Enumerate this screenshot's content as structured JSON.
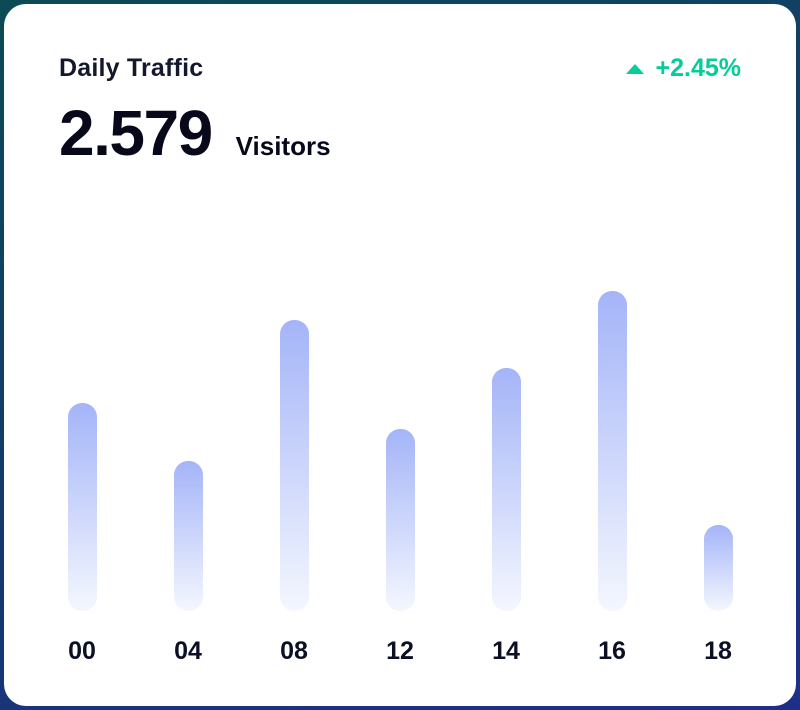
{
  "card": {
    "title": "Daily Traffic",
    "value": "2.579",
    "unit": "Visitors",
    "trend": {
      "direction": "up",
      "icon": "triangle-up-icon",
      "label": "+2.45%",
      "color": "#05CD99"
    }
  },
  "chart_data": {
    "type": "bar",
    "title": "Daily Traffic",
    "categories": [
      "00",
      "04",
      "08",
      "12",
      "14",
      "16",
      "18"
    ],
    "values": [
      65,
      47,
      91,
      57,
      76,
      100,
      27
    ],
    "xlabel": "",
    "ylabel": "",
    "ylim": [
      0,
      100
    ],
    "grid": false,
    "legend": false,
    "bar_gradient_top": "#A4B4F8",
    "bar_gradient_bottom": "#F4F7FE"
  }
}
